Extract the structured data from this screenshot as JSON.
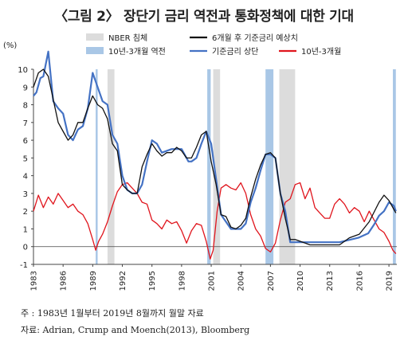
{
  "title": "〈그림 2〉 장단기 금리 역전과 통화정책에 대한 기대",
  "note": "주 : 1983년 1월부터 2019년 8월까지 월말 자료",
  "source": "자료: Adrian, Crump and Moench(2013), Bloomberg",
  "chart_data": {
    "type": "line",
    "ylabel": "(%)",
    "ylim": [
      -1,
      10
    ],
    "xlim": [
      1983.0,
      2019.8
    ],
    "xticks": [
      "1983",
      "1986",
      "1989",
      "1992",
      "1995",
      "1998",
      "2001",
      "2004",
      "2007",
      "2010",
      "2013",
      "2016",
      "2019"
    ],
    "yticks": [
      -1,
      0,
      1,
      2,
      3,
      4,
      5,
      6,
      7,
      8,
      9,
      10
    ],
    "grid": false,
    "legend_position": "top",
    "legend": [
      {
        "name": "NBER 침체",
        "kind": "band",
        "color": "#dcdcdc"
      },
      {
        "name": "10년-3개월 역전",
        "kind": "band",
        "color": "#a9c7e6"
      },
      {
        "name": "6개월 후 기준금리 예상치",
        "kind": "line",
        "color": "#111111"
      },
      {
        "name": "기준금리 상단",
        "kind": "line",
        "color": "#4472c4"
      },
      {
        "name": "10년-3개월",
        "kind": "line",
        "color": "#e0151d"
      }
    ],
    "recessions": [
      [
        1990.5,
        1991.2
      ],
      [
        2001.2,
        2001.9
      ],
      [
        2007.9,
        2009.5
      ]
    ],
    "inversions": [
      [
        1989.3,
        1989.5
      ],
      [
        2000.6,
        2000.95
      ],
      [
        2006.5,
        2007.3
      ],
      [
        2019.4,
        2019.7
      ]
    ],
    "series": [
      {
        "name": "6개월 후 기준금리 예상치",
        "color": "#111111",
        "x": [
          1983.0,
          1983.5,
          1984.0,
          1984.5,
          1985.0,
          1985.5,
          1986.0,
          1986.5,
          1987.0,
          1987.5,
          1988.0,
          1988.5,
          1989.0,
          1989.5,
          1990.0,
          1990.5,
          1991.0,
          1991.5,
          1992.0,
          1992.5,
          1993.0,
          1993.5,
          1994.0,
          1994.5,
          1995.0,
          1995.5,
          1996.0,
          1996.5,
          1997.0,
          1997.5,
          1998.0,
          1998.5,
          1999.0,
          1999.5,
          2000.0,
          2000.5,
          2001.0,
          2001.5,
          2002.0,
          2002.5,
          2003.0,
          2003.5,
          2004.0,
          2004.5,
          2005.0,
          2005.5,
          2006.0,
          2006.5,
          2007.0,
          2007.5,
          2008.0,
          2008.5,
          2009.0,
          2009.5,
          2010.0,
          2011.0,
          2012.0,
          2013.0,
          2014.0,
          2015.0,
          2016.0,
          2017.0,
          2018.0,
          2018.5,
          2019.0,
          2019.5,
          2019.7
        ],
        "y": [
          9.0,
          9.8,
          10.0,
          9.6,
          8.3,
          7.0,
          6.5,
          6.0,
          6.3,
          7.0,
          7.0,
          7.8,
          8.5,
          8.0,
          7.8,
          7.2,
          5.8,
          5.4,
          3.5,
          3.2,
          3.0,
          3.0,
          4.5,
          5.2,
          5.8,
          5.4,
          5.1,
          5.3,
          5.3,
          5.6,
          5.4,
          5.0,
          5.0,
          5.6,
          6.3,
          6.5,
          4.8,
          3.5,
          1.8,
          1.7,
          1.1,
          1.0,
          1.2,
          1.6,
          2.8,
          3.8,
          4.6,
          5.2,
          5.3,
          5.0,
          3.0,
          1.6,
          0.4,
          0.4,
          0.3,
          0.1,
          0.1,
          0.1,
          0.1,
          0.5,
          0.7,
          1.4,
          2.5,
          2.9,
          2.6,
          2.1,
          1.9
        ]
      },
      {
        "name": "기준금리 상단",
        "color": "#4472c4",
        "x": [
          1983.0,
          1983.3,
          1983.7,
          1984.0,
          1984.5,
          1985.0,
          1985.5,
          1986.0,
          1986.5,
          1987.0,
          1987.5,
          1988.0,
          1988.5,
          1989.0,
          1989.5,
          1990.0,
          1990.5,
          1991.0,
          1991.5,
          1992.0,
          1992.5,
          1993.0,
          1993.5,
          1994.0,
          1994.5,
          1995.0,
          1995.5,
          1996.0,
          1997.0,
          1998.0,
          1998.7,
          1999.0,
          1999.5,
          2000.0,
          2000.5,
          2001.0,
          2001.5,
          2002.0,
          2003.0,
          2004.0,
          2004.5,
          2005.0,
          2005.5,
          2006.0,
          2006.5,
          2007.0,
          2007.5,
          2008.0,
          2008.5,
          2009.0,
          2010.0,
          2012.0,
          2014.0,
          2015.9,
          2016.9,
          2017.5,
          2018.0,
          2018.5,
          2019.0,
          2019.5,
          2019.7
        ],
        "y": [
          8.5,
          8.7,
          9.5,
          9.6,
          11.0,
          8.2,
          7.8,
          7.5,
          6.3,
          6.0,
          6.6,
          6.8,
          7.8,
          9.8,
          9.0,
          8.2,
          8.0,
          6.3,
          5.8,
          4.0,
          3.2,
          3.0,
          3.0,
          3.5,
          4.8,
          6.0,
          5.8,
          5.3,
          5.5,
          5.5,
          4.8,
          4.8,
          5.0,
          5.8,
          6.5,
          5.8,
          3.8,
          1.8,
          1.0,
          1.0,
          1.3,
          2.5,
          3.3,
          4.3,
          5.2,
          5.2,
          5.0,
          3.0,
          2.0,
          0.25,
          0.25,
          0.25,
          0.25,
          0.5,
          0.75,
          1.25,
          1.75,
          2.0,
          2.5,
          2.3,
          2.0
        ]
      },
      {
        "name": "10년-3개월",
        "color": "#e0151d",
        "x": [
          1983.0,
          1983.5,
          1984.0,
          1984.5,
          1985.0,
          1985.5,
          1986.0,
          1986.5,
          1987.0,
          1987.5,
          1988.0,
          1988.5,
          1989.0,
          1989.3,
          1989.6,
          1990.0,
          1990.5,
          1991.0,
          1991.5,
          1992.0,
          1992.5,
          1993.0,
          1993.5,
          1994.0,
          1994.5,
          1995.0,
          1995.5,
          1996.0,
          1996.5,
          1997.0,
          1997.5,
          1998.0,
          1998.5,
          1999.0,
          1999.5,
          2000.0,
          2000.5,
          2000.9,
          2001.2,
          2001.6,
          2002.0,
          2002.5,
          2003.0,
          2003.5,
          2004.0,
          2004.5,
          2005.0,
          2005.5,
          2006.0,
          2006.5,
          2007.0,
          2007.5,
          2008.0,
          2008.5,
          2009.0,
          2009.5,
          2010.0,
          2010.5,
          2011.0,
          2011.5,
          2012.0,
          2012.5,
          2013.0,
          2013.5,
          2014.0,
          2014.5,
          2015.0,
          2015.5,
          2016.0,
          2016.5,
          2017.0,
          2017.5,
          2018.0,
          2018.5,
          2019.0,
          2019.4,
          2019.7
        ],
        "y": [
          2.0,
          2.9,
          2.2,
          2.8,
          2.4,
          3.0,
          2.6,
          2.2,
          2.4,
          2.0,
          1.8,
          1.3,
          0.4,
          -0.2,
          0.3,
          0.7,
          1.4,
          2.3,
          3.1,
          3.5,
          3.6,
          3.3,
          3.0,
          2.5,
          2.4,
          1.5,
          1.3,
          1.0,
          1.5,
          1.3,
          1.4,
          0.9,
          0.2,
          0.9,
          1.3,
          1.2,
          0.3,
          -0.7,
          -0.2,
          2.0,
          3.3,
          3.5,
          3.3,
          3.2,
          3.6,
          3.0,
          1.8,
          1.0,
          0.6,
          -0.1,
          -0.3,
          0.2,
          1.5,
          2.5,
          2.7,
          3.5,
          3.6,
          2.7,
          3.3,
          2.2,
          1.9,
          1.6,
          1.6,
          2.4,
          2.7,
          2.4,
          1.9,
          2.2,
          2.0,
          1.4,
          2.0,
          1.5,
          1.0,
          0.8,
          0.3,
          -0.2,
          -0.4
        ]
      }
    ]
  }
}
